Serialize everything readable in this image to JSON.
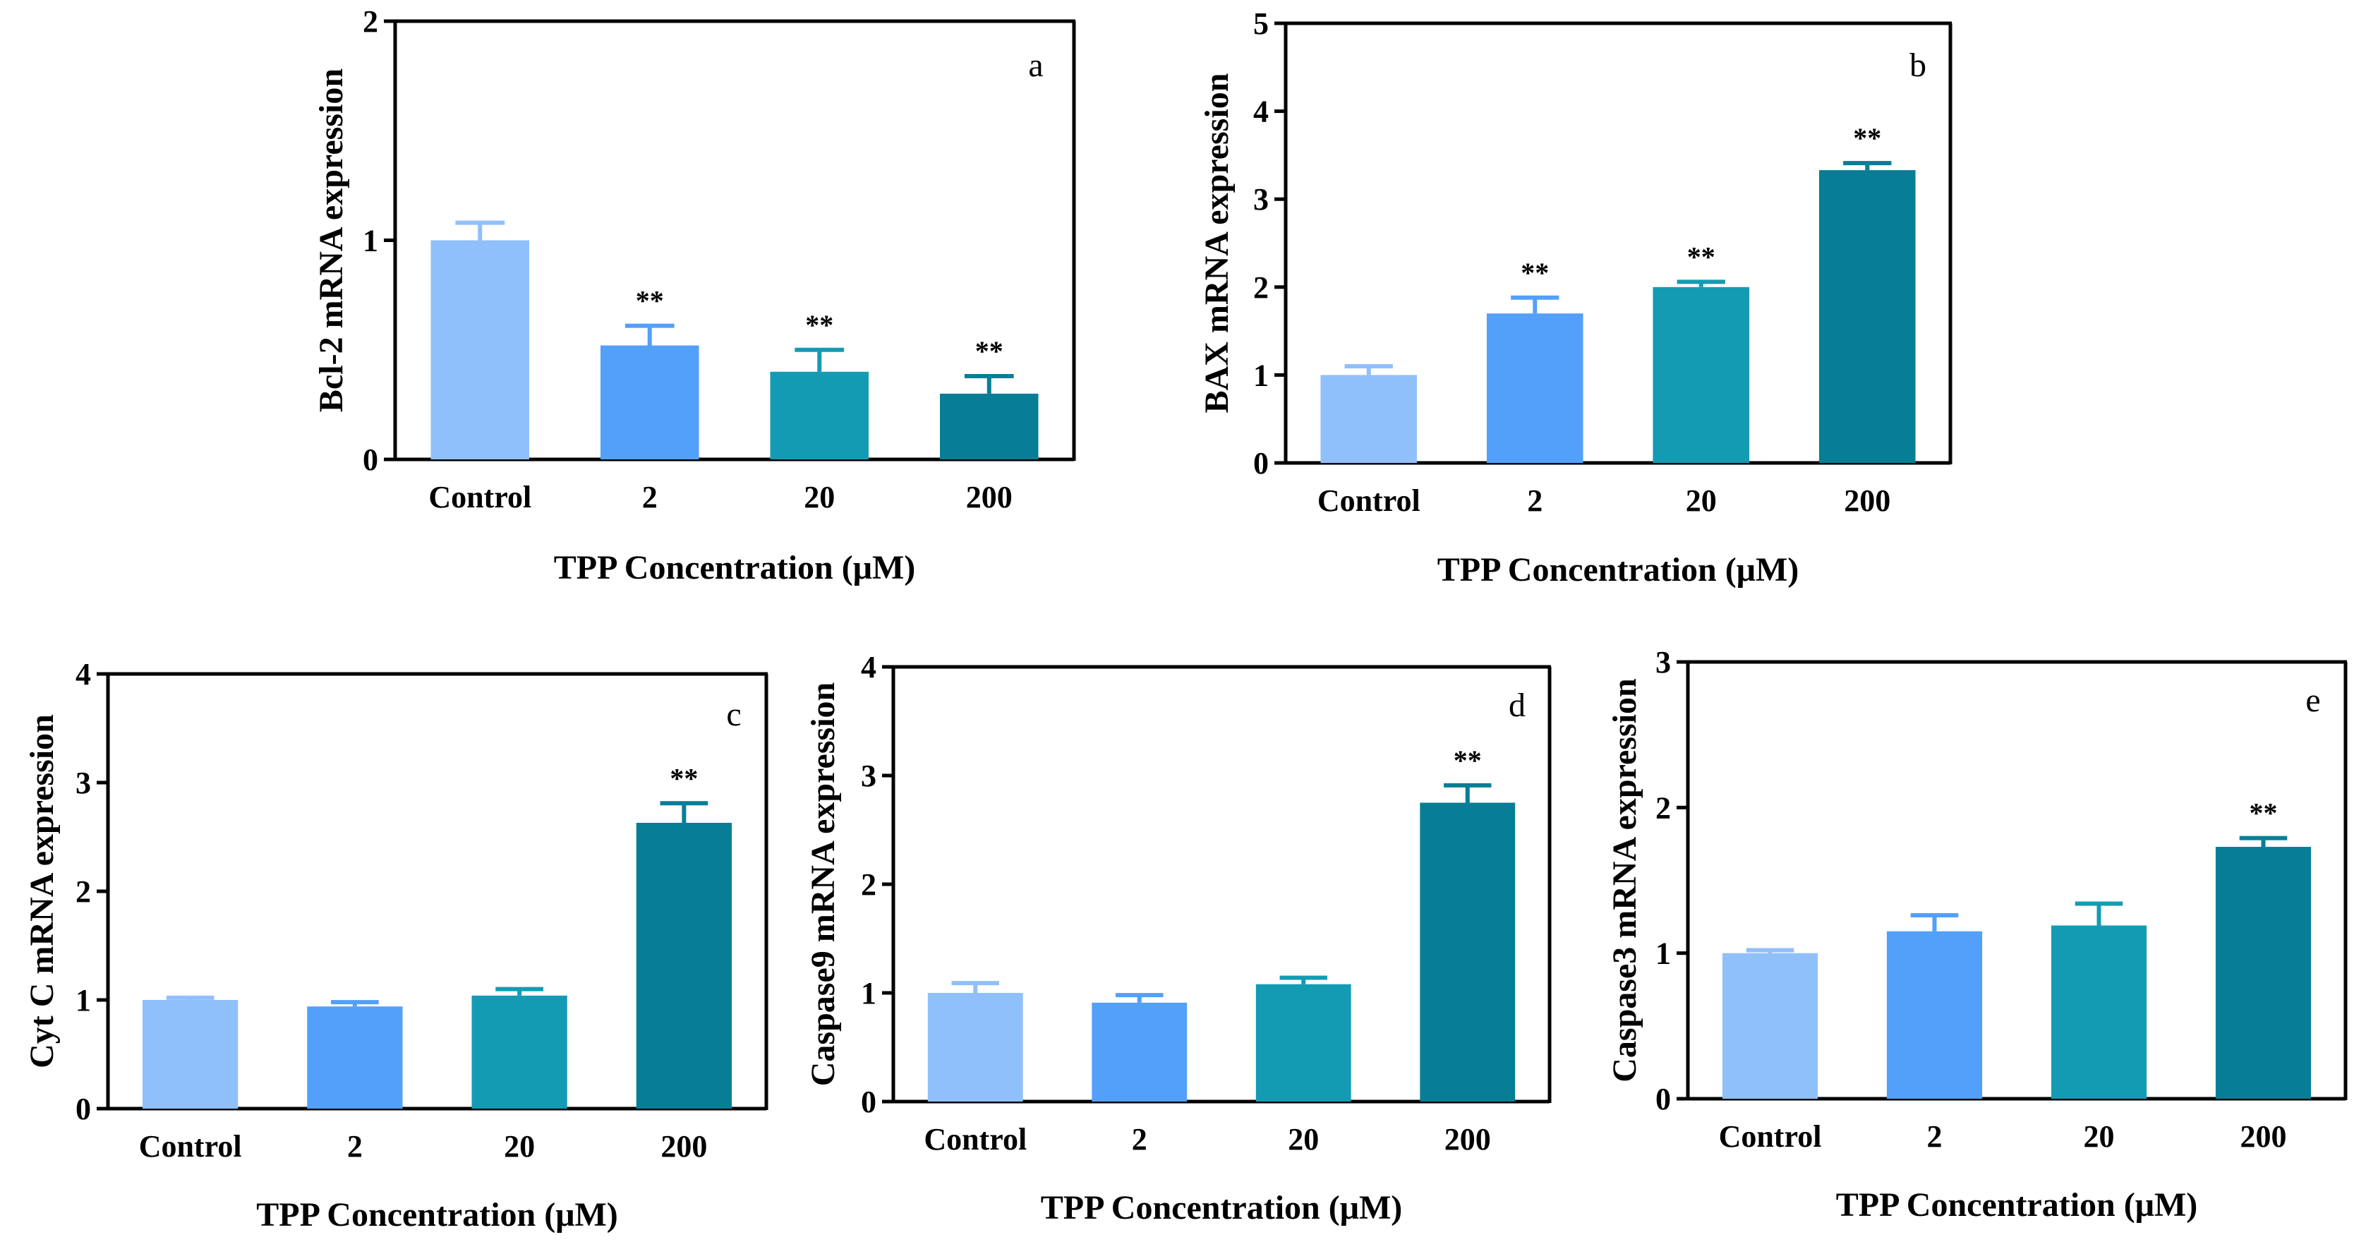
{
  "colors": {
    "control": "#90c0fa",
    "c2": "#52a0fa",
    "c20": "#149bb4",
    "c200": "#077e96",
    "axis": "#000000"
  },
  "xlabel": "TPP Concentration (μM)",
  "categories": [
    "Control",
    "2",
    "20",
    "200"
  ],
  "chart_data": [
    {
      "type": "bar",
      "panel": "a",
      "ylabel": "Bcl-2 mRNA expression",
      "xlabel": "TPP Concentration (μM)",
      "categories": [
        "Control",
        "2",
        "20",
        "200"
      ],
      "ylim": [
        0,
        2
      ],
      "yticks": [
        "0",
        "1",
        "2"
      ],
      "values": [
        1.0,
        0.52,
        0.4,
        0.3
      ],
      "errors": [
        0.08,
        0.09,
        0.1,
        0.08
      ],
      "significance": [
        "",
        "**",
        "**",
        "**"
      ]
    },
    {
      "type": "bar",
      "panel": "b",
      "ylabel": "BAX mRNA expression",
      "xlabel": "TPP Concentration (μM)",
      "categories": [
        "Control",
        "2",
        "20",
        "200"
      ],
      "ylim": [
        0,
        5
      ],
      "yticks": [
        "0",
        "1",
        "2",
        "3",
        "4",
        "5"
      ],
      "values": [
        1.0,
        1.7,
        2.0,
        3.33
      ],
      "errors": [
        0.1,
        0.18,
        0.06,
        0.08
      ],
      "significance": [
        "",
        "**",
        "**",
        "**"
      ]
    },
    {
      "type": "bar",
      "panel": "c",
      "ylabel": "Cyt C mRNA expression",
      "xlabel": "TPP Concentration (μM)",
      "categories": [
        "Control",
        "2",
        "20",
        "200"
      ],
      "ylim": [
        0,
        4
      ],
      "yticks": [
        "0",
        "1",
        "2",
        "3",
        "4"
      ],
      "values": [
        1.0,
        0.94,
        1.04,
        2.63
      ],
      "errors": [
        0.02,
        0.04,
        0.06,
        0.18
      ],
      "significance": [
        "",
        "",
        "",
        "**"
      ]
    },
    {
      "type": "bar",
      "panel": "d",
      "ylabel": "Caspase9 mRNA expression",
      "xlabel": "TPP Concentration (μM)",
      "categories": [
        "Control",
        "2",
        "20",
        "200"
      ],
      "ylim": [
        0,
        4
      ],
      "yticks": [
        "0",
        "1",
        "2",
        "3",
        "4"
      ],
      "values": [
        1.0,
        0.91,
        1.08,
        2.75
      ],
      "errors": [
        0.09,
        0.07,
        0.06,
        0.16
      ],
      "significance": [
        "",
        "",
        "",
        "**"
      ]
    },
    {
      "type": "bar",
      "panel": "e",
      "ylabel": "Caspase3 mRNA expression",
      "xlabel": "TPP Concentration (μM)",
      "categories": [
        "Control",
        "2",
        "20",
        "200"
      ],
      "ylim": [
        0,
        3
      ],
      "yticks": [
        "0",
        "1",
        "2",
        "3"
      ],
      "values": [
        1.0,
        1.15,
        1.19,
        1.73
      ],
      "errors": [
        0.02,
        0.11,
        0.15,
        0.06
      ],
      "significance": [
        "",
        "",
        "",
        "**"
      ]
    }
  ]
}
